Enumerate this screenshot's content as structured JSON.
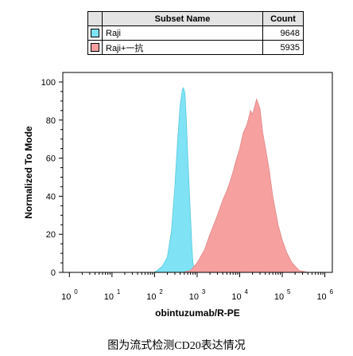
{
  "legend": {
    "headers": [
      "",
      "Subset Name",
      "Count"
    ],
    "rows": [
      {
        "name": "Raji",
        "count": "9648",
        "color": "#7fe3f5"
      },
      {
        "name": "Raji+一抗",
        "count": "5935",
        "color": "#f6a0a0"
      }
    ]
  },
  "caption": "图为流式检测CD20表达情况",
  "chart_data": {
    "type": "area",
    "xlabel": "obintuzumab/R-PE",
    "ylabel": "Normalized To Mode",
    "x_scale": "log",
    "xlim": [
      0.7,
      1500000
    ],
    "ylim": [
      0,
      105
    ],
    "x_ticks": [
      1,
      10,
      100,
      1000,
      10000,
      100000,
      1000000
    ],
    "x_tick_labels": [
      [
        "10",
        "0"
      ],
      [
        "10",
        "1"
      ],
      [
        "10",
        "2"
      ],
      [
        "10",
        "3"
      ],
      [
        "10",
        "4"
      ],
      [
        "10",
        "5"
      ],
      [
        "10",
        "6"
      ]
    ],
    "y_ticks": [
      0,
      20,
      40,
      60,
      80,
      100
    ],
    "series": [
      {
        "name": "Raji",
        "fill": "#7fe3f5",
        "stroke": "#58c9dd",
        "x": [
          100,
          150,
          200,
          250,
          300,
          350,
          400,
          450,
          480,
          520,
          560,
          600,
          650,
          700,
          750,
          800,
          850,
          950,
          1100
        ],
        "y": [
          0,
          3,
          8,
          22,
          45,
          70,
          88,
          96,
          97,
          94,
          80,
          62,
          45,
          30,
          15,
          5,
          2,
          1,
          0
        ]
      },
      {
        "name": "Raji+一抗",
        "fill": "#f6a0a0",
        "stroke": "#e08a8a",
        "x": [
          450,
          700,
          1000,
          1500,
          2000,
          3000,
          4000,
          5000,
          6000,
          7000,
          8000,
          10000,
          12000,
          15000,
          18000,
          20000,
          25000,
          30000,
          35000,
          40000,
          50000,
          60000,
          80000,
          100000,
          130000,
          170000,
          250000,
          400000
        ],
        "y": [
          0,
          1,
          5,
          12,
          20,
          30,
          38,
          43,
          48,
          53,
          58,
          65,
          73,
          78,
          85,
          83,
          91,
          86,
          73,
          66,
          53,
          40,
          25,
          17,
          10,
          5,
          1,
          0
        ]
      }
    ]
  }
}
